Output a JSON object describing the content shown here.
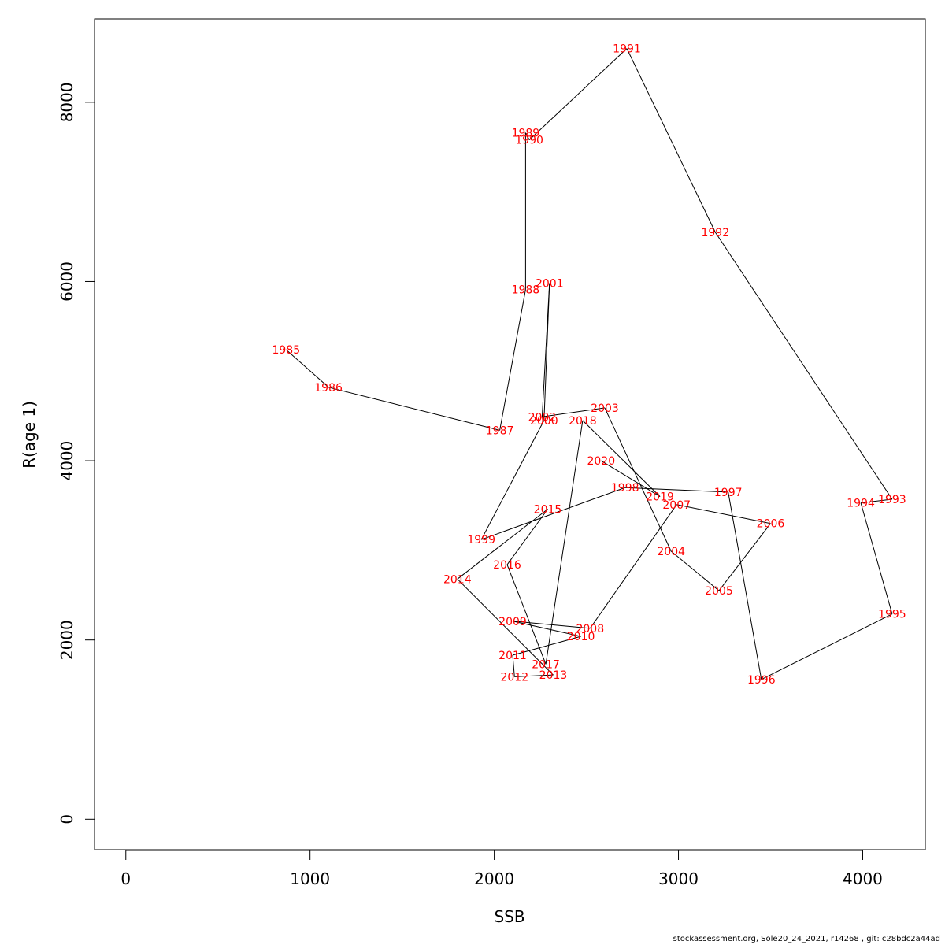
{
  "chart_data": {
    "type": "scatter",
    "connected": true,
    "title": "",
    "xlabel": "SSB",
    "ylabel": "R(age 1)",
    "xlim": [
      -170,
      4340
    ],
    "ylim": [
      -340,
      8930
    ],
    "xticks": [
      0,
      1000,
      2000,
      3000,
      4000
    ],
    "yticks": [
      0,
      2000,
      4000,
      6000,
      8000
    ],
    "xtick_labels": [
      "0",
      "1000",
      "2000",
      "3000",
      "4000"
    ],
    "ytick_labels": [
      "0",
      "2000",
      "4000",
      "6000",
      "8000"
    ],
    "line_color": "#000000",
    "label_color": "#ff0000",
    "points": [
      {
        "label": "1985",
        "x": 870,
        "y": 5240
      },
      {
        "label": "1986",
        "x": 1100,
        "y": 4820
      },
      {
        "label": "1987",
        "x": 2030,
        "y": 4340
      },
      {
        "label": "1988",
        "x": 2170,
        "y": 5910
      },
      {
        "label": "1989",
        "x": 2170,
        "y": 7660
      },
      {
        "label": "1990",
        "x": 2190,
        "y": 7580
      },
      {
        "label": "1991",
        "x": 2720,
        "y": 8600
      },
      {
        "label": "1992",
        "x": 3200,
        "y": 6550
      },
      {
        "label": "1993",
        "x": 4160,
        "y": 3570
      },
      {
        "label": "1994",
        "x": 3990,
        "y": 3530
      },
      {
        "label": "1995",
        "x": 4160,
        "y": 2290
      },
      {
        "label": "1996",
        "x": 3450,
        "y": 1560
      },
      {
        "label": "1997",
        "x": 3270,
        "y": 3650
      },
      {
        "label": "1998",
        "x": 2710,
        "y": 3700
      },
      {
        "label": "1999",
        "x": 1930,
        "y": 3120
      },
      {
        "label": "2000",
        "x": 2270,
        "y": 4450
      },
      {
        "label": "2001",
        "x": 2300,
        "y": 5980
      },
      {
        "label": "2002",
        "x": 2260,
        "y": 4490
      },
      {
        "label": "2003",
        "x": 2600,
        "y": 4590
      },
      {
        "label": "2004",
        "x": 2960,
        "y": 2990
      },
      {
        "label": "2005",
        "x": 3220,
        "y": 2550
      },
      {
        "label": "2006",
        "x": 3500,
        "y": 3300
      },
      {
        "label": "2007",
        "x": 2990,
        "y": 3510
      },
      {
        "label": "2008",
        "x": 2520,
        "y": 2130
      },
      {
        "label": "2009",
        "x": 2100,
        "y": 2210
      },
      {
        "label": "2010",
        "x": 2470,
        "y": 2040
      },
      {
        "label": "2011",
        "x": 2100,
        "y": 1830
      },
      {
        "label": "2012",
        "x": 2110,
        "y": 1590
      },
      {
        "label": "2013",
        "x": 2320,
        "y": 1610
      },
      {
        "label": "2014",
        "x": 1800,
        "y": 2680
      },
      {
        "label": "2015",
        "x": 2290,
        "y": 3460
      },
      {
        "label": "2016",
        "x": 2070,
        "y": 2840
      },
      {
        "label": "2017",
        "x": 2280,
        "y": 1730
      },
      {
        "label": "2018",
        "x": 2480,
        "y": 4450
      },
      {
        "label": "2019",
        "x": 2900,
        "y": 3600
      },
      {
        "label": "2020",
        "x": 2580,
        "y": 4000
      }
    ]
  },
  "footer": {
    "text": "stockassessment.org, Sole20_24_2021, r14268 , git: c28bdc2a44ad"
  }
}
